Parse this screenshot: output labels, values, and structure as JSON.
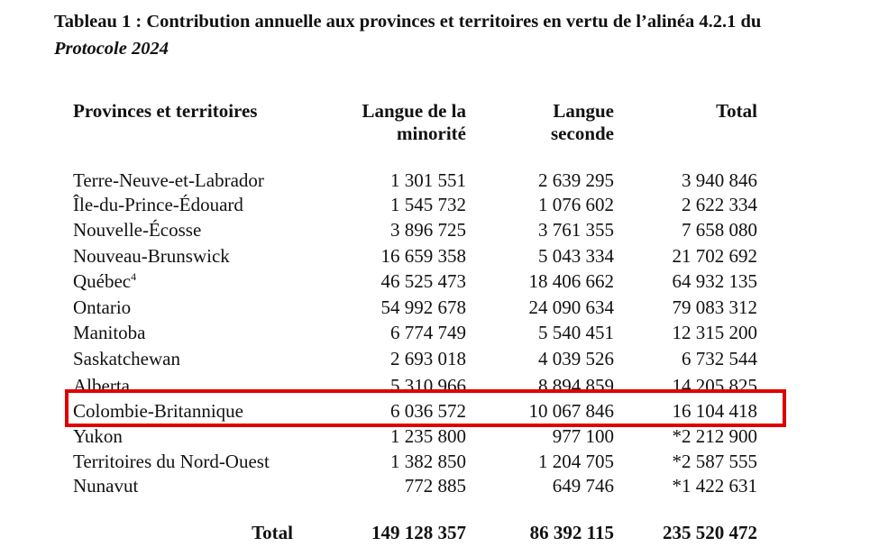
{
  "title": {
    "main": "Tableau 1 : Contribution annuelle aux provinces et territoires en vertu de l’alinéa 4.2.1 du",
    "italic": "Protocole 2024"
  },
  "headers": {
    "col0": "Provinces et territoires",
    "col1_line1": "Langue de la",
    "col1_line2": "minorité",
    "col2_line1": "Langue",
    "col2_line2": "seconde",
    "col3": "Total"
  },
  "rows": [
    {
      "name": "Terre-Neuve-et-Labrador",
      "minority": "1 301 551",
      "second": "2 639 295",
      "total": "3 940 846"
    },
    {
      "name": "Île-du-Prince-Édouard",
      "minority": "1 545 732",
      "second": "1 076 602",
      "total": "2 622 334"
    },
    {
      "name": "Nouvelle-Écosse",
      "minority": "3 896 725",
      "second": "3 761 355",
      "total": "7 658 080"
    },
    {
      "name": "Nouveau-Brunswick",
      "minority": "16 659 358",
      "second": "5 043 334",
      "total": "21 702 692"
    },
    {
      "name": "Québec",
      "footnote": "4",
      "minority": "46 525 473",
      "second": "18 406 662",
      "total": "64 932 135"
    },
    {
      "name": "Ontario",
      "minority": "54 992 678",
      "second": "24 090 634",
      "total": "79 083 312"
    },
    {
      "name": "Manitoba",
      "minority": "6 774 749",
      "second": "5 540 451",
      "total": "12 315 200"
    },
    {
      "name": "Saskatchewan",
      "minority": "2 693 018",
      "second": "4 039 526",
      "total": "6 732 544"
    },
    {
      "name": "Alberta",
      "minority": "5 310 966",
      "second": "8 894 859",
      "total": "14 205 825"
    },
    {
      "name": "Colombie-Britannique",
      "minority": "6 036 572",
      "second": "10 067 846",
      "total": "16 104 418"
    },
    {
      "name": "Yukon",
      "minority": "1 235 800",
      "second": "977 100",
      "total": "*2 212 900"
    },
    {
      "name": "Territoires du Nord-Ouest",
      "minority": "1 382 850",
      "second": "1 204 705",
      "total": "*2 587 555"
    },
    {
      "name": "Nunavut",
      "minority": "772 885",
      "second": "649 746",
      "total": "*1 422 631"
    }
  ],
  "total": {
    "label": "Total",
    "minority": "149 128 357",
    "second": "86 392 115",
    "total": "235 520 472"
  },
  "highlight_color": "#e00000"
}
